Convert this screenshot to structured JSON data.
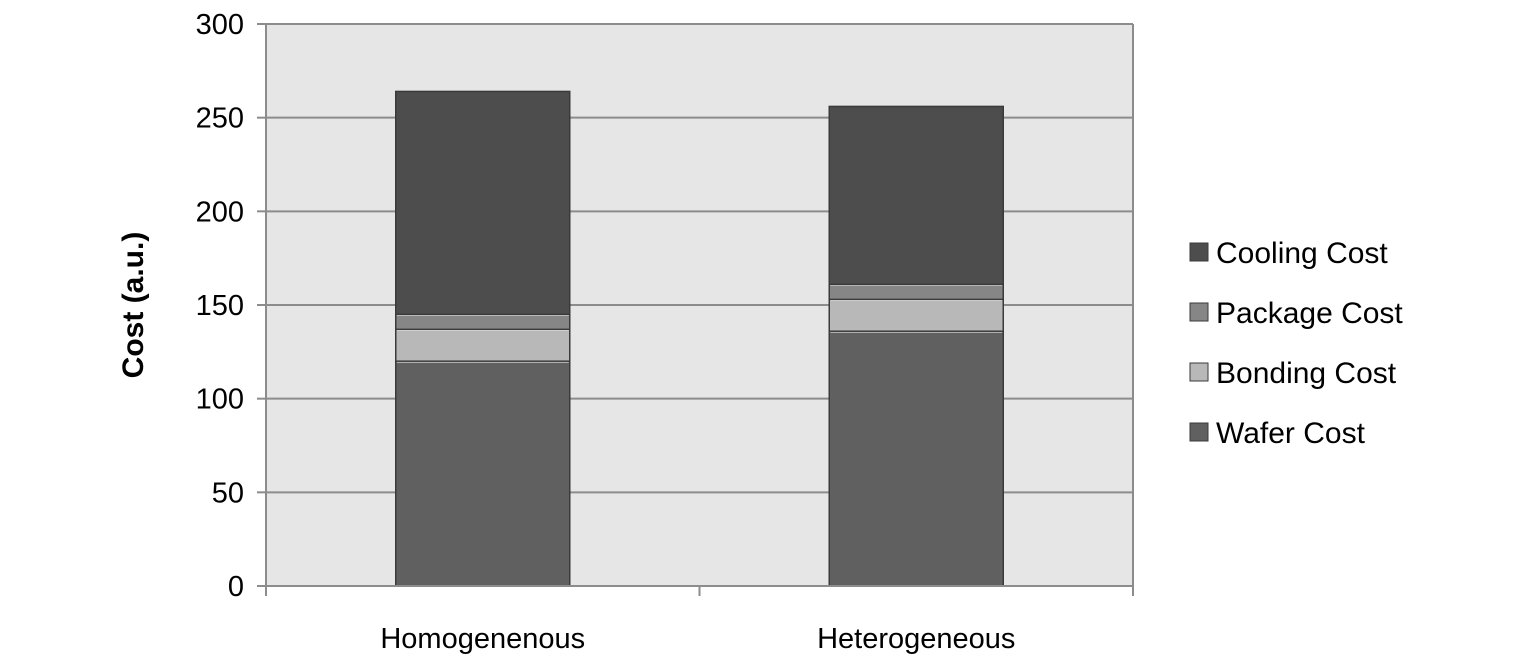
{
  "chart_data": {
    "type": "bar",
    "stacked": true,
    "title": "",
    "xlabel": "",
    "ylabel": "Cost (a.u.)",
    "ylim": [
      0,
      300
    ],
    "yticks": [
      0,
      50,
      100,
      150,
      200,
      250,
      300
    ],
    "grid": true,
    "legend_position": "right",
    "categories": [
      "Homogenenous",
      "Heterogeneous"
    ],
    "series": [
      {
        "name": "Wafer Cost",
        "values": [
          120,
          136
        ],
        "color": "#606060"
      },
      {
        "name": "Bonding Cost",
        "values": [
          17,
          17
        ],
        "color": "#b8b8b8"
      },
      {
        "name": "Package Cost",
        "values": [
          8,
          8
        ],
        "color": "#868686"
      },
      {
        "name": "Cooling Cost",
        "values": [
          119,
          95
        ],
        "color": "#4d4d4d"
      }
    ],
    "legend_order": [
      "Cooling Cost",
      "Package Cost",
      "Bonding Cost",
      "Wafer Cost"
    ],
    "plot_background": "#e6e6e6",
    "gridline_color": "#8c8c8c"
  }
}
